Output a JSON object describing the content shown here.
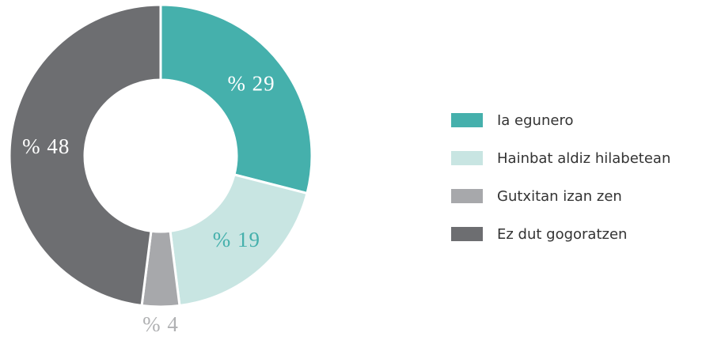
{
  "chart_data": {
    "type": "donut",
    "categories": [
      "Ia egunero",
      "Hainbat aldiz hilabetean",
      "Gutxitan izan zen",
      "Ez dut gogoratzen"
    ],
    "values": [
      29,
      19,
      4,
      48
    ],
    "value_labels": [
      "% 29",
      "% 19",
      "% 4",
      "% 48"
    ],
    "colors": [
      "#45b0ac",
      "#c8e5e2",
      "#a7a8ab",
      "#6d6e71"
    ],
    "legend": "right"
  }
}
